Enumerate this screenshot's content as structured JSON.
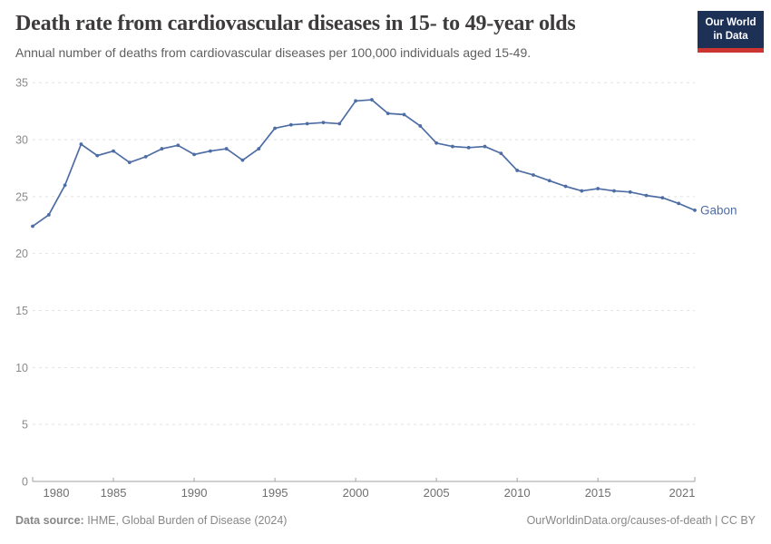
{
  "header": {
    "title": "Death rate from cardiovascular diseases in 15- to 49-year olds",
    "subtitle": "Annual number of deaths from cardiovascular diseases per 100,000 individuals aged 15-49."
  },
  "logo": {
    "line1": "Our World",
    "line2": "in Data"
  },
  "chart_data": {
    "type": "line",
    "title": "Death rate from cardiovascular diseases in 15- to 49-year olds",
    "x": [
      1980,
      1981,
      1982,
      1983,
      1984,
      1985,
      1986,
      1987,
      1988,
      1989,
      1990,
      1991,
      1992,
      1993,
      1994,
      1995,
      1996,
      1997,
      1998,
      1999,
      2000,
      2001,
      2002,
      2003,
      2004,
      2005,
      2006,
      2007,
      2008,
      2009,
      2010,
      2011,
      2012,
      2013,
      2014,
      2015,
      2016,
      2017,
      2018,
      2019,
      2020,
      2021
    ],
    "series": [
      {
        "name": "Gabon",
        "color": "#4e6da5",
        "values": [
          22.4,
          23.4,
          26.0,
          29.6,
          28.6,
          29.0,
          28.0,
          28.5,
          29.2,
          29.5,
          28.7,
          29.0,
          29.2,
          28.2,
          29.2,
          31.0,
          31.3,
          31.4,
          31.5,
          31.4,
          33.4,
          33.5,
          32.3,
          32.2,
          31.2,
          29.7,
          29.4,
          29.3,
          29.4,
          28.8,
          27.3,
          26.9,
          26.4,
          25.9,
          25.5,
          25.7,
          25.5,
          25.4,
          25.1,
          24.9,
          24.4,
          23.8
        ]
      }
    ],
    "xlabel": "",
    "ylabel": "",
    "ylim": [
      0,
      35
    ],
    "yticks": [
      0,
      5,
      10,
      15,
      20,
      25,
      30,
      35
    ],
    "xticks": [
      1980,
      1985,
      1990,
      1995,
      2000,
      2005,
      2010,
      2015,
      2021
    ],
    "grid": "horizontal-dashed",
    "legend_position": "end-of-line-label",
    "colors": {
      "gridline": "#e2e2e2",
      "axis": "#a1a1a1",
      "y_tick_label": "#8b8b8b",
      "x_tick_label": "#6f6f6f"
    }
  },
  "footer": {
    "source_label": "Data source:",
    "source_value": " IHME, Global Burden of Disease (2024)",
    "link": "OurWorldinData.org/causes-of-death | CC BY"
  }
}
